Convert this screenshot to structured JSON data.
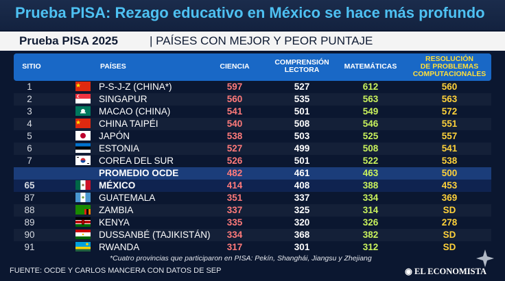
{
  "header_title": "Prueba PISA: Rezago educativo en México se hace más profundo",
  "subheader": {
    "bold": "Prueba PISA 2025",
    "normal": "| PAÍSES CON MEJOR Y PEOR PUNTAJE"
  },
  "columns": {
    "sitio": "SITIO",
    "paises": "PAÍSES",
    "ciencia": "CIENCIA",
    "comprension_1": "COMPRENSIÓN",
    "comprension_2": "LECTORA",
    "matematicas": "MATEMÁTICAS",
    "resolucion_1": "RESOLUCIÓN",
    "resolucion_2": "DE PROBLEMAS",
    "resolucion_3": "COMPUTACIONALES"
  },
  "rows": [
    {
      "rank": "1",
      "country": "P-S-J-Z (CHINA*)",
      "flag": "china-flag",
      "ciencia": "597",
      "lectora": "527",
      "matematicas": "612",
      "resolucion": "560"
    },
    {
      "rank": "2",
      "country": "SINGAPUR",
      "flag": "singapore-flag",
      "ciencia": "560",
      "lectora": "535",
      "matematicas": "563",
      "resolucion": "563"
    },
    {
      "rank": "3",
      "country": "MACAO (CHINA)",
      "flag": "macao-flag",
      "ciencia": "541",
      "lectora": "501",
      "matematicas": "549",
      "resolucion": "572"
    },
    {
      "rank": "4",
      "country": "CHINA TAIPÉI",
      "flag": "china-flag",
      "ciencia": "540",
      "lectora": "508",
      "matematicas": "546",
      "resolucion": "551"
    },
    {
      "rank": "5",
      "country": "JAPÓN",
      "flag": "japan-flag",
      "ciencia": "538",
      "lectora": "503",
      "matematicas": "525",
      "resolucion": "557"
    },
    {
      "rank": "6",
      "country": "ESTONIA",
      "flag": "estonia-flag",
      "ciencia": "527",
      "lectora": "499",
      "matematicas": "508",
      "resolucion": "541"
    },
    {
      "rank": "7",
      "country": "COREA DEL SUR",
      "flag": "korea-flag",
      "ciencia": "526",
      "lectora": "501",
      "matematicas": "522",
      "resolucion": "538"
    },
    {
      "rank": "",
      "country": "PROMEDIO OCDE",
      "flag": "",
      "ciencia": "482",
      "lectora": "461",
      "matematicas": "463",
      "resolucion": "500"
    },
    {
      "rank": "65",
      "country": "MÉXICO",
      "flag": "mexico-flag",
      "ciencia": "414",
      "lectora": "408",
      "matematicas": "388",
      "resolucion": "453"
    },
    {
      "rank": "87",
      "country": "GUATEMALA",
      "flag": "guatemala-flag",
      "ciencia": "351",
      "lectora": "337",
      "matematicas": "334",
      "resolucion": "369"
    },
    {
      "rank": "88",
      "country": "ZAMBIA",
      "flag": "zambia-flag",
      "ciencia": "337",
      "lectora": "325",
      "matematicas": "314",
      "resolucion": "SD"
    },
    {
      "rank": "89",
      "country": "KENYA",
      "flag": "kenya-flag",
      "ciencia": "335",
      "lectora": "320",
      "matematicas": "326",
      "resolucion": "278"
    },
    {
      "rank": "90",
      "country": "DUSSANBÉ (TAJIKISTÁN)",
      "flag": "tajikistan-flag",
      "ciencia": "334",
      "lectora": "368",
      "matematicas": "382",
      "resolucion": "SD"
    },
    {
      "rank": "91",
      "country": "RWANDA",
      "flag": "rwanda-flag",
      "ciencia": "317",
      "lectora": "301",
      "matematicas": "312",
      "resolucion": "SD"
    }
  ],
  "footnote": "*Cuatro provincias que participaron en PISA: Pekín, Shanghái, Jiangsu y Zhejiang",
  "source": "FUENTE: OCDE Y CARLOS MANCERA CON DATOS DE SEP",
  "logo": "EL ECONOMISTA",
  "colors": {
    "title": "#4ec1f2",
    "header_bar": "#1968c6",
    "ciencia": "#ff7a7a",
    "matematicas": "#c9f25c",
    "resolucion": "#ffd23a"
  }
}
